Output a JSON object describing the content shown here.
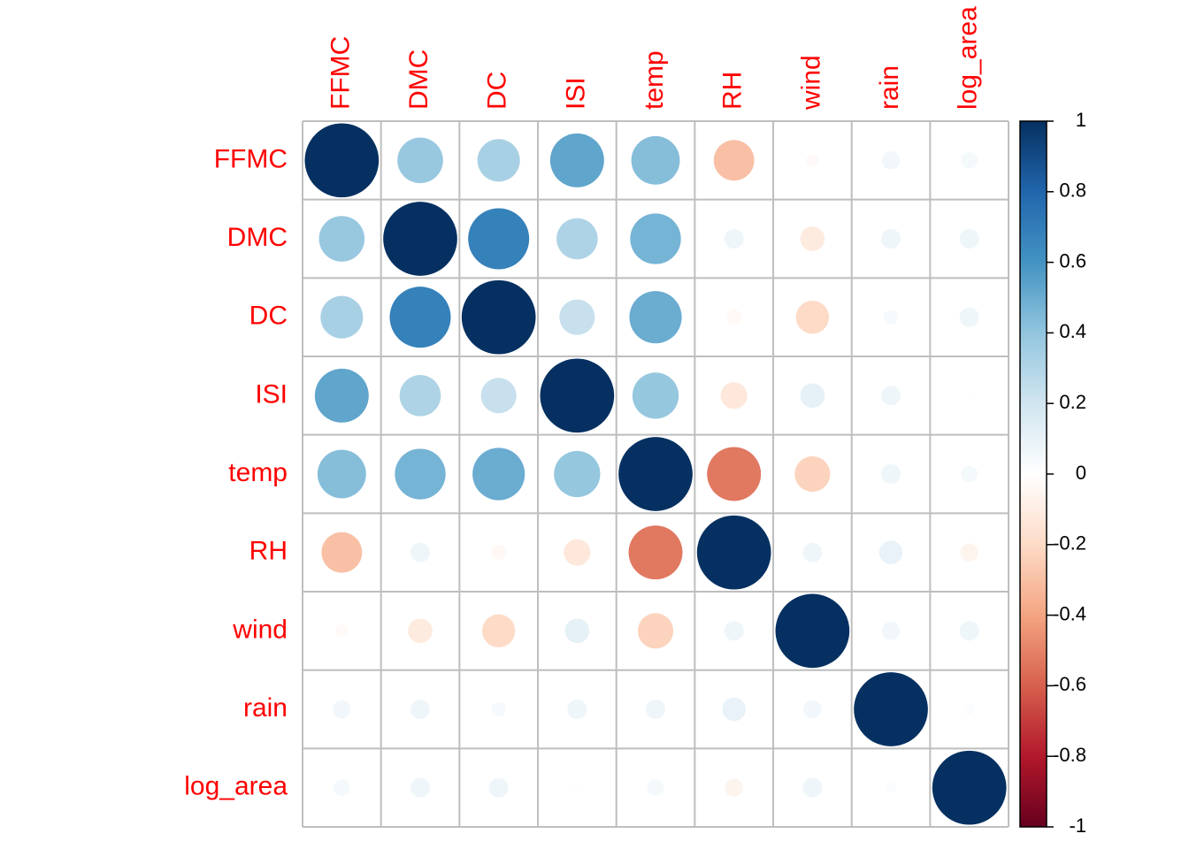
{
  "chart_data": {
    "type": "heatmap",
    "variables": [
      "FFMC",
      "DMC",
      "DC",
      "ISI",
      "temp",
      "RH",
      "wind",
      "rain",
      "log_area"
    ],
    "matrix": [
      [
        1.0,
        0.38,
        0.33,
        0.53,
        0.43,
        -0.3,
        -0.03,
        0.06,
        0.05
      ],
      [
        0.38,
        1.0,
        0.68,
        0.31,
        0.47,
        0.07,
        -0.11,
        0.07,
        0.07
      ],
      [
        0.33,
        0.68,
        1.0,
        0.23,
        0.5,
        -0.04,
        -0.2,
        0.04,
        0.07
      ],
      [
        0.53,
        0.31,
        0.23,
        1.0,
        0.39,
        -0.13,
        0.11,
        0.07,
        0.01
      ],
      [
        0.43,
        0.47,
        0.5,
        0.39,
        1.0,
        -0.53,
        -0.23,
        0.07,
        0.05
      ],
      [
        -0.3,
        0.07,
        -0.04,
        -0.13,
        -0.53,
        1.0,
        0.07,
        0.1,
        -0.06
      ],
      [
        -0.03,
        -0.11,
        -0.2,
        0.11,
        -0.23,
        0.07,
        1.0,
        0.06,
        0.07
      ],
      [
        0.06,
        0.07,
        0.04,
        0.07,
        0.07,
        0.1,
        0.06,
        1.0,
        0.02
      ],
      [
        0.05,
        0.07,
        0.07,
        0.01,
        0.05,
        -0.06,
        0.07,
        0.02,
        1.0
      ]
    ],
    "colorbar": {
      "ticks": [
        "1",
        "0.8",
        "0.6",
        "0.4",
        "0.2",
        "0",
        "-0.2",
        "-0.4",
        "-0.6",
        "-0.8",
        "-1"
      ],
      "range": [
        -1,
        1
      ]
    },
    "colors": {
      "label": "#ff0000",
      "grid": "#bebebe",
      "scale": [
        "#67001f",
        "#b2182b",
        "#d6604d",
        "#f4a582",
        "#fddbc7",
        "#ffffff",
        "#d1e5f0",
        "#92c5de",
        "#4393c3",
        "#2166ac",
        "#053061"
      ]
    }
  }
}
